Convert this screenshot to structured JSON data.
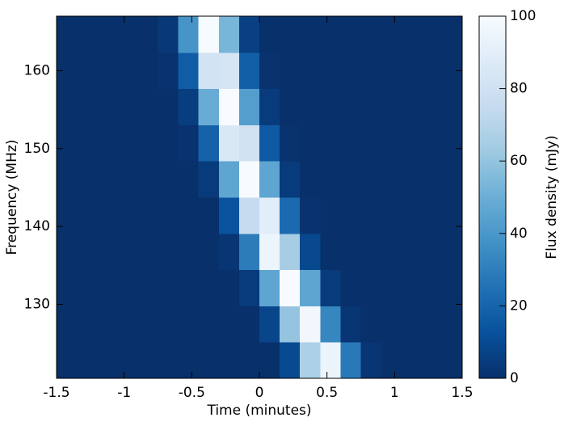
{
  "chart_data": {
    "type": "heatmap",
    "xlabel": "Time (minutes)",
    "ylabel": "Frequency (MHz)",
    "colorbar_label": "Flux density (mJy)",
    "xlim": [
      -1.5,
      1.5
    ],
    "xticks": [
      -1.5,
      -1,
      -0.5,
      0,
      0.5,
      1,
      1.5
    ],
    "ylim": [
      120.5,
      167
    ],
    "yticks": [
      130,
      140,
      150,
      160
    ],
    "clim": [
      0,
      100
    ],
    "cticks": [
      0,
      20,
      40,
      60,
      80,
      100
    ],
    "colormap": [
      "#08306b",
      "#08519c",
      "#2171b5",
      "#4292c6",
      "#6baed6",
      "#9ecae1",
      "#c6dbef",
      "#deebf7",
      "#f7fbff"
    ],
    "x_edges": [
      -1.5,
      -1.35,
      -1.2,
      -1.05,
      -0.9,
      -0.75,
      -0.6,
      -0.45,
      -0.3,
      -0.15,
      0,
      0.15,
      0.3,
      0.45,
      0.6,
      0.75,
      0.9,
      1.05,
      1.2,
      1.35,
      1.5
    ],
    "y_edges": [
      120.5,
      125.15,
      129.8,
      134.45,
      139.1,
      143.75,
      148.4,
      153.05,
      157.7,
      162.35,
      167
    ],
    "z": [
      [
        0,
        0,
        0,
        0,
        0,
        0,
        0,
        0,
        0,
        0,
        0,
        10,
        67,
        94,
        28,
        2,
        0,
        0,
        0,
        0
      ],
      [
        0,
        0,
        0,
        0,
        0,
        0,
        0,
        0,
        0,
        0,
        8,
        60,
        97,
        33,
        2,
        0,
        0,
        0,
        0,
        0
      ],
      [
        0,
        0,
        0,
        0,
        0,
        0,
        0,
        0,
        0,
        4,
        46,
        100,
        46,
        4,
        0,
        0,
        0,
        0,
        0,
        0
      ],
      [
        0,
        0,
        0,
        0,
        0,
        0,
        0,
        0,
        2,
        29,
        95,
        65,
        9,
        0,
        0,
        0,
        0,
        0,
        0,
        0
      ],
      [
        0,
        0,
        0,
        0,
        0,
        0,
        0,
        0,
        13,
        75,
        89,
        22,
        1,
        0,
        0,
        0,
        0,
        0,
        0,
        0
      ],
      [
        0,
        0,
        0,
        0,
        0,
        0,
        0,
        4,
        46,
        100,
        46,
        4,
        0,
        0,
        0,
        0,
        0,
        0,
        0,
        0
      ],
      [
        0,
        0,
        0,
        0,
        0,
        0,
        1,
        19,
        85,
        80,
        16,
        1,
        0,
        0,
        0,
        0,
        0,
        0,
        0,
        0
      ],
      [
        0,
        0,
        0,
        0,
        0,
        0,
        5,
        49,
        100,
        43,
        4,
        0,
        0,
        0,
        0,
        0,
        0,
        0,
        0,
        0
      ],
      [
        0,
        0,
        0,
        0,
        0,
        1,
        17,
        81,
        83,
        18,
        1,
        0,
        0,
        0,
        0,
        0,
        0,
        0,
        0,
        0
      ],
      [
        0,
        0,
        0,
        0,
        0,
        3,
        39,
        99,
        53,
        6,
        0,
        0,
        0,
        0,
        0,
        0,
        0,
        0,
        0,
        0
      ]
    ]
  }
}
